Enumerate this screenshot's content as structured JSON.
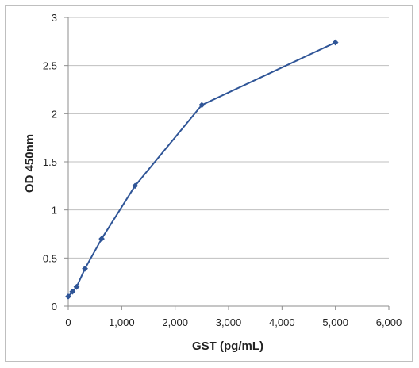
{
  "chart_data": {
    "type": "line",
    "title": "",
    "xlabel": "GST (pg/mL)",
    "ylabel": "OD 450nm",
    "xlim": [
      0,
      6000
    ],
    "ylim": [
      0,
      3
    ],
    "x_ticks": [
      0,
      1000,
      2000,
      3000,
      4000,
      5000,
      6000
    ],
    "x_tick_labels": [
      "0",
      "1,000",
      "2,000",
      "3,000",
      "4,000",
      "5,000",
      "6,000"
    ],
    "y_ticks": [
      0,
      0.5,
      1,
      1.5,
      2,
      2.5,
      3
    ],
    "y_tick_labels": [
      "0",
      "0.5",
      "1",
      "1.5",
      "2",
      "2.5",
      "3"
    ],
    "grid": "horizontal",
    "legend": "none",
    "series": [
      {
        "color": "#2f5597",
        "marker": "diamond",
        "x": [
          0,
          78,
          156,
          313,
          625,
          1250,
          2500,
          5000
        ],
        "y": [
          0.1,
          0.15,
          0.2,
          0.39,
          0.7,
          1.25,
          2.09,
          2.74
        ]
      }
    ]
  }
}
